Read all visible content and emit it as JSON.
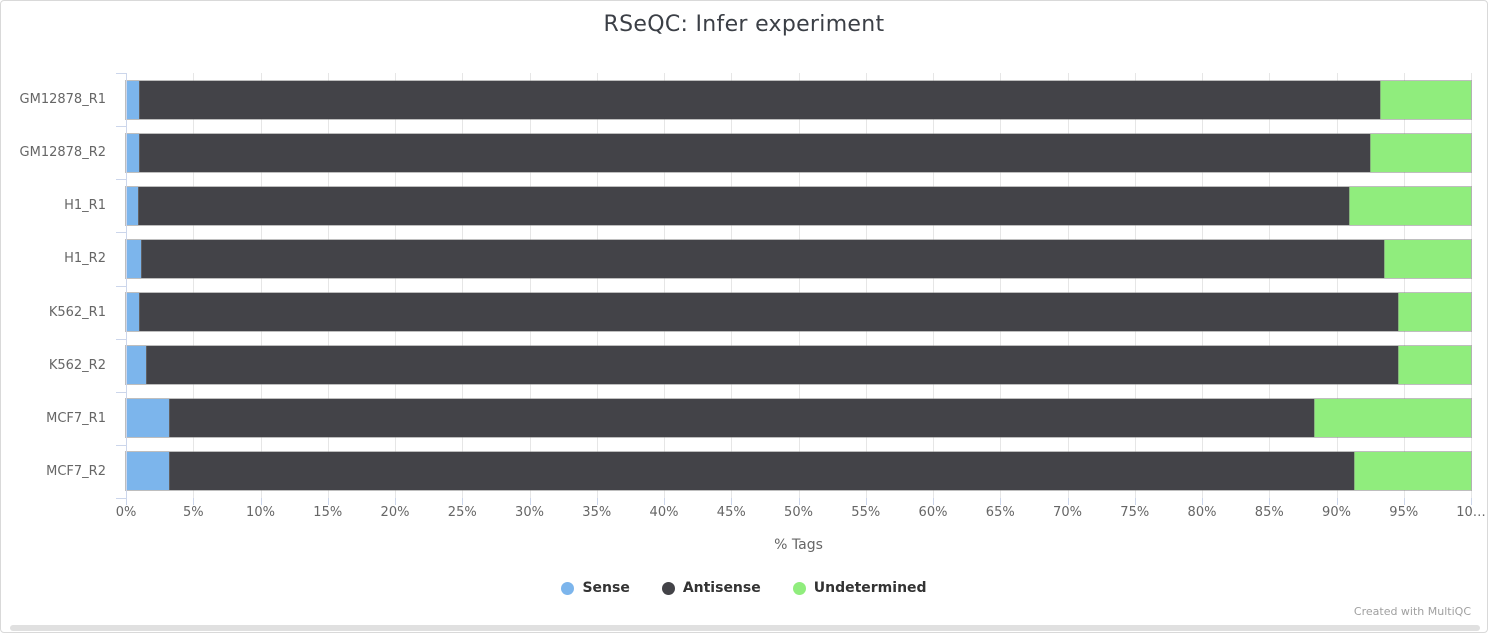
{
  "watermark": "Created with MultiQC",
  "chart_data": {
    "type": "bar",
    "orientation": "horizontal",
    "stacked": true,
    "title": "RSeQC: Infer experiment",
    "xlabel": "% Tags",
    "xlim": [
      0,
      100
    ],
    "x_ticks": [
      "0%",
      "5%",
      "10%",
      "15%",
      "20%",
      "25%",
      "30%",
      "35%",
      "40%",
      "45%",
      "50%",
      "55%",
      "60%",
      "65%",
      "70%",
      "75%",
      "80%",
      "85%",
      "90%",
      "95%",
      "10…"
    ],
    "grid": true,
    "legend_position": "bottom",
    "axis_line_color": "#ccd6eb",
    "grid_color": "#e6e6e6",
    "categories": [
      "GM12878_R1",
      "GM12878_R2",
      "H1_R1",
      "H1_R2",
      "K562_R1",
      "K562_R2",
      "MCF7_R1",
      "MCF7_R2"
    ],
    "series": [
      {
        "name": "Sense",
        "color": "#7cb5ec",
        "values": [
          1.0,
          1.0,
          0.9,
          1.1,
          1.0,
          1.5,
          3.2,
          3.2
        ]
      },
      {
        "name": "Antisense",
        "color": "#434348",
        "values": [
          92.2,
          91.5,
          90.0,
          92.4,
          93.6,
          93.1,
          85.1,
          88.1
        ]
      },
      {
        "name": "Undetermined",
        "color": "#90ed7d",
        "values": [
          6.8,
          7.5,
          9.1,
          6.5,
          5.4,
          5.4,
          11.7,
          8.7
        ]
      }
    ]
  }
}
